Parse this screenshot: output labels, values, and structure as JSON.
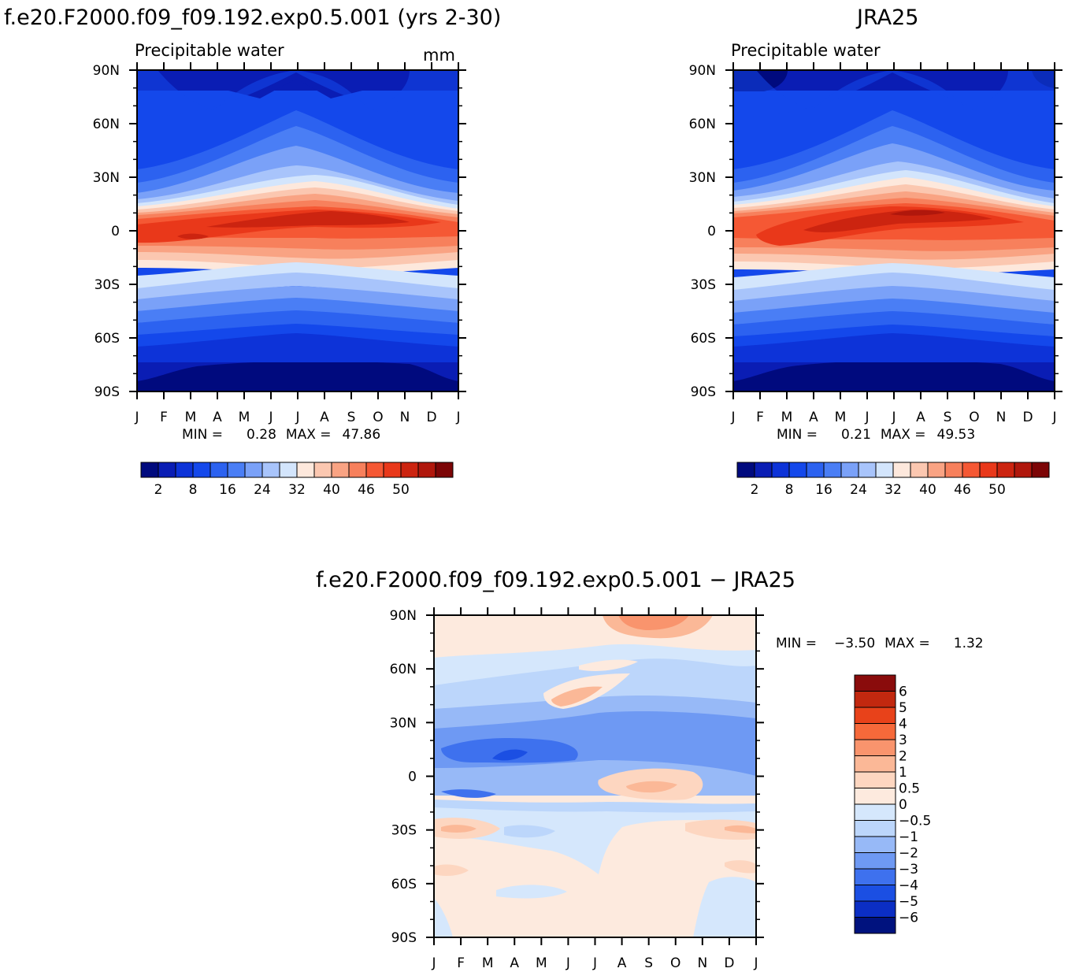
{
  "chart_data": [
    {
      "type": "heatmap",
      "title": "f.e20.F2000.f09_f09.192.exp0.5.001 (yrs 2-30)",
      "subtitle": "Precipitable water",
      "units": "mm",
      "x_ticks": [
        "J",
        "F",
        "M",
        "A",
        "M",
        "J",
        "J",
        "A",
        "S",
        "O",
        "N",
        "D",
        "J"
      ],
      "y_ticks": [
        "90N",
        "60N",
        "30N",
        "0",
        "30S",
        "60S",
        "90S"
      ],
      "stats": {
        "min_label": "MIN =",
        "min": "0.28",
        "max_label": "MAX =",
        "max": "47.86"
      },
      "colorbar": {
        "labels": [
          "2",
          "8",
          "16",
          "24",
          "32",
          "40",
          "46",
          "50"
        ],
        "colors": [
          "#000a7e",
          "#0a1db4",
          "#0d33d8",
          "#1448eb",
          "#2c62f0",
          "#4a7ef5",
          "#7aa1f8",
          "#a8c4fb",
          "#d3e5fc",
          "#fde8dc",
          "#fbc7b0",
          "#f9a383",
          "#f7805c",
          "#f55834",
          "#e9381a",
          "#cc2410",
          "#b0170c",
          "#7c0506"
        ]
      }
    },
    {
      "type": "heatmap",
      "title": "JRA25",
      "subtitle": "Precipitable water",
      "x_ticks": [
        "J",
        "F",
        "M",
        "A",
        "M",
        "J",
        "J",
        "A",
        "S",
        "O",
        "N",
        "D",
        "J"
      ],
      "y_ticks": [
        "90N",
        "60N",
        "30N",
        "0",
        "30S",
        "60S",
        "90S"
      ],
      "stats": {
        "min_label": "MIN =",
        "min": "0.21",
        "max_label": "MAX =",
        "max": "49.53"
      },
      "colorbar": {
        "labels": [
          "2",
          "8",
          "16",
          "24",
          "32",
          "40",
          "46",
          "50"
        ],
        "colors": [
          "#000a7e",
          "#0a1db4",
          "#0d33d8",
          "#1448eb",
          "#2c62f0",
          "#4a7ef5",
          "#7aa1f8",
          "#a8c4fb",
          "#d3e5fc",
          "#fde8dc",
          "#fbc7b0",
          "#f9a383",
          "#f7805c",
          "#f55834",
          "#e9381a",
          "#cc2410",
          "#b0170c",
          "#7c0506"
        ]
      }
    },
    {
      "type": "heatmap",
      "title": "f.e20.F2000.f09_f09.192.exp0.5.001 − JRA25",
      "x_ticks": [
        "J",
        "F",
        "M",
        "A",
        "M",
        "J",
        "J",
        "A",
        "S",
        "O",
        "N",
        "D",
        "J"
      ],
      "y_ticks": [
        "90N",
        "60N",
        "30N",
        "0",
        "30S",
        "60S",
        "90S"
      ],
      "stats": {
        "min_label": "MIN =",
        "min": "−3.50",
        "max_label": "MAX =",
        "max": "1.32"
      },
      "colorbar": {
        "labels": [
          "6",
          "5",
          "4",
          "3",
          "2",
          "1",
          "0.5",
          "0",
          "−0.5",
          "−1",
          "−2",
          "−3",
          "−4",
          "−5",
          "−6"
        ],
        "colors": [
          "#8a0c0c",
          "#c2280f",
          "#e8421a",
          "#f6693a",
          "#f9946d",
          "#fbb897",
          "#fdd6c0",
          "#fdeade",
          "#d5e7fc",
          "#bcd6fb",
          "#97b9f7",
          "#6e99f3",
          "#3e71ee",
          "#1b4fe3",
          "#0b2ec4",
          "#00127e"
        ]
      }
    }
  ]
}
